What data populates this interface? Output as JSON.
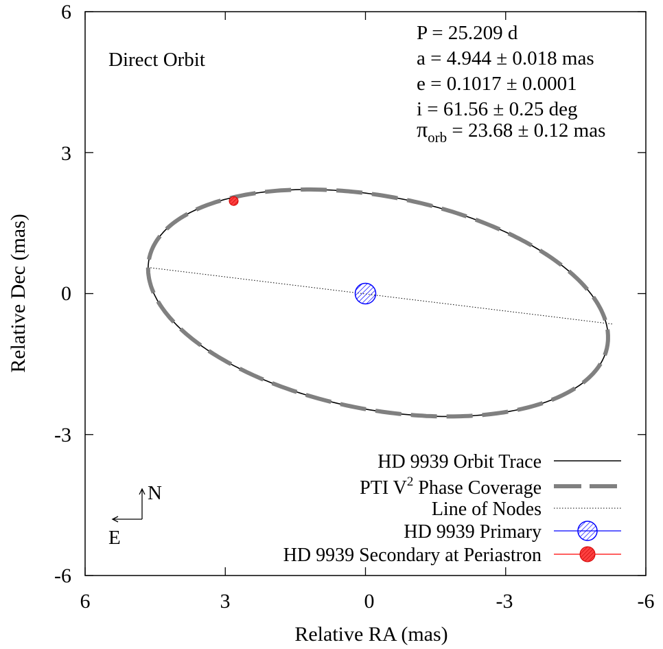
{
  "chart_data": {
    "type": "scatter",
    "xlabel": "Relative RA (mas)",
    "ylabel": "Relative Dec (mas)",
    "xlim": [
      6,
      -6
    ],
    "ylim": [
      -6,
      6
    ],
    "xticks": [
      "6",
      "3",
      "0",
      "-3",
      "-6"
    ],
    "yticks": [
      "6",
      "3",
      "0",
      "-3",
      "-6"
    ],
    "grid": false,
    "annotation": "Direct Orbit",
    "params": {
      "p": "P = 25.209 d",
      "a": "a = 4.944 ± 0.018 mas",
      "e": "e = 0.1017 ± 0.0001",
      "i": "i = 61.56 ± 0.25 deg",
      "pi_symbol": "π",
      "pi_sub": "orb",
      "pi_val": " = 23.68 ± 0.12 mas"
    },
    "orbit": {
      "center": [
        -0.27,
        -0.2
      ],
      "semi_major": 4.99,
      "semi_minor": 2.27,
      "position_angle_deg": 10.7
    },
    "coverage_fraction": 0.78,
    "line_of_nodes": {
      "x": [
        4.6,
        -5.3
      ],
      "y": [
        0.55,
        -0.65
      ]
    },
    "primary": {
      "x": 0.0,
      "y": 0.0
    },
    "secondary_periastron": {
      "x": 2.82,
      "y": 1.97
    },
    "compass": {
      "north": "N",
      "east": "E"
    },
    "legend_position": "bottom-right",
    "legend": [
      {
        "label": "HD 9939 Orbit Trace",
        "style": "solid",
        "color": "#000000"
      },
      {
        "label_main": "PTI V",
        "label_sup": "2",
        "label_rest": " Phase Coverage",
        "style": "thick-dash",
        "color": "#808080"
      },
      {
        "label": "Line of Nodes",
        "style": "dotted",
        "color": "#000000"
      },
      {
        "label": "HD 9939 Primary",
        "style": "marker",
        "color": "#0000ff"
      },
      {
        "label": "HD 9939 Secondary at Periastron",
        "style": "marker",
        "color": "#ff0000"
      }
    ]
  }
}
